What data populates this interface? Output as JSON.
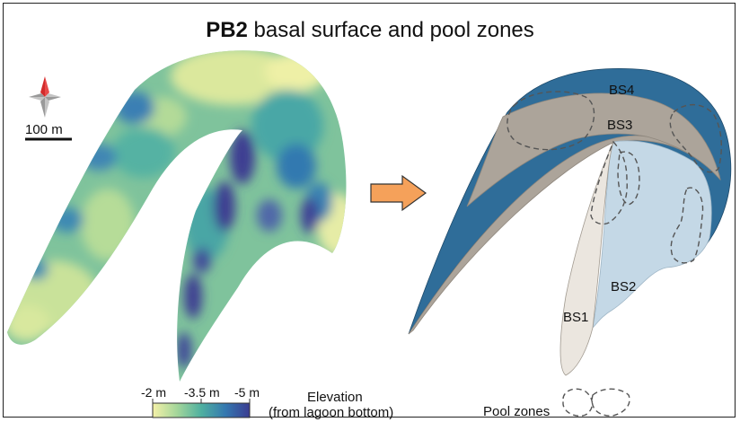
{
  "title": {
    "bold": "PB2",
    "rest": " basal surface and pool zones"
  },
  "scale_bar": {
    "label": "100 m"
  },
  "legend": {
    "tick_labels": [
      "-2 m",
      "-3.5 m",
      "-5 m"
    ],
    "title_line1": "Elevation",
    "title_line2": "(from lagoon bottom)",
    "colors": [
      "#f5f1a8",
      "#a4d69a",
      "#4fb0a0",
      "#3478b0",
      "#3b3c91"
    ]
  },
  "zones": {
    "bs1": "BS1",
    "bs2": "BS2",
    "bs3": "BS3",
    "bs4": "BS4",
    "pool_zones": "Pool zones"
  },
  "colors": {
    "bs1": "#ebe6df",
    "bs2": "#c4d8e6",
    "bs3": "#aca49a",
    "bs4": "#2f6d99",
    "arrow": "#f5a15a"
  }
}
